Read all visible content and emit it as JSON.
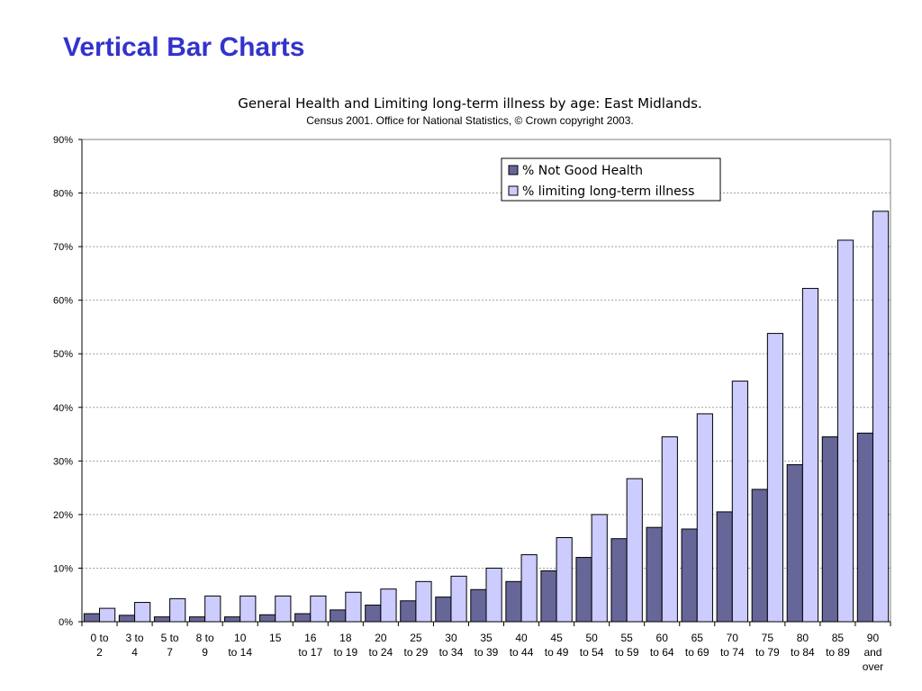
{
  "slide": {
    "title": "Vertical Bar Charts"
  },
  "chart_data": {
    "type": "bar",
    "title": "General Health and Limiting long-term illness by age: East Midlands.",
    "subtitle": "Census 2001. Office for National Statistics, © Crown copyright 2003.",
    "xlabel": "",
    "ylabel": "",
    "ylim": [
      0,
      90
    ],
    "y_ticks": [
      0,
      10,
      20,
      30,
      40,
      50,
      60,
      70,
      80,
      90
    ],
    "y_tick_format": "%",
    "grid": true,
    "legend_position": "top-right",
    "categories": [
      [
        "0 to",
        "2"
      ],
      [
        "3 to",
        "4"
      ],
      [
        "5 to",
        "7"
      ],
      [
        "8 to",
        "9"
      ],
      [
        "10",
        "to 14"
      ],
      [
        "15"
      ],
      [
        "16",
        "to 17"
      ],
      [
        "18",
        "to 19"
      ],
      [
        "20",
        "to 24"
      ],
      [
        "25",
        "to 29"
      ],
      [
        "30",
        "to 34"
      ],
      [
        "35",
        "to 39"
      ],
      [
        "40",
        "to 44"
      ],
      [
        "45",
        "to 49"
      ],
      [
        "50",
        "to 54"
      ],
      [
        "55",
        "to 59"
      ],
      [
        "60",
        "to 64"
      ],
      [
        "65",
        "to 69"
      ],
      [
        "70",
        "to 74"
      ],
      [
        "75",
        "to 79"
      ],
      [
        "80",
        "to 84"
      ],
      [
        "85",
        "to 89"
      ],
      [
        "90",
        "and",
        "over"
      ]
    ],
    "series": [
      {
        "name": "% Not Good Health",
        "color": "#666699",
        "values": [
          1.5,
          1.2,
          0.9,
          0.9,
          0.9,
          1.3,
          1.5,
          2.2,
          3.1,
          3.9,
          4.6,
          6.0,
          7.5,
          9.5,
          12.0,
          15.5,
          17.6,
          17.3,
          20.5,
          24.7,
          29.3,
          34.5,
          35.2
        ]
      },
      {
        "name": "% limiting long-term illness",
        "color": "#ccccff",
        "values": [
          2.5,
          3.6,
          4.3,
          4.8,
          4.8,
          4.8,
          4.8,
          5.5,
          6.1,
          7.5,
          8.5,
          10.0,
          12.5,
          15.7,
          20.0,
          26.7,
          34.5,
          38.8,
          44.9,
          53.8,
          62.2,
          71.2,
          76.6
        ]
      }
    ]
  }
}
